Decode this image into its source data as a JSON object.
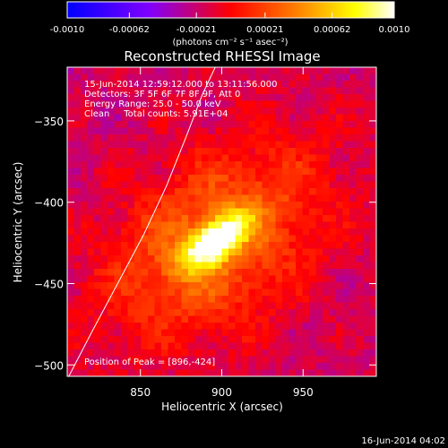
{
  "chart_data": {
    "type": "heatmap",
    "title": "Reconstructed RHESSI Image",
    "xlabel": "Heliocentric X (arcsec)",
    "ylabel": "Heliocentric Y (arcsec)",
    "xlim": [
      805,
      995
    ],
    "ylim": [
      -507,
      -317
    ],
    "x_ticks": [
      850,
      900,
      950
    ],
    "y_ticks": [
      -350,
      -400,
      -450,
      -500
    ],
    "colorbar": {
      "min": -0.001,
      "max": 0.001,
      "ticks": [
        "-0.0010",
        "-0.00062",
        "-0.00021",
        "0.00021",
        "0.00062",
        "0.0010"
      ],
      "tick_values": [
        -0.001,
        -0.00062,
        -0.00021,
        0.00021,
        0.00062,
        0.001
      ],
      "unit_label": "(photons cm⁻² s⁻¹ asec⁻²)",
      "colors": [
        "#0000ff",
        "#7f00ff",
        "#ff0000",
        "#ff7f00",
        "#ffff00",
        "#ffffff"
      ]
    },
    "annotations": [
      "15-Jun-2014 12:59:12.000 to 13:11:56.000",
      "Detectors: 3F 5F 6F 7F 8F 9F, Att 0",
      "Energy Range: 25.0 - 50.0 keV",
      "Clean     Total counts: 5.91E+04"
    ],
    "peak_label": "Position of Peak = [896,-424]",
    "peak": [
      896,
      -424
    ],
    "limb_points": [
      [
        806,
        -507
      ],
      [
        820,
        -480
      ],
      [
        836,
        -450
      ],
      [
        852,
        -420
      ],
      [
        866,
        -390
      ],
      [
        878,
        -360
      ],
      [
        888,
        -334
      ],
      [
        896,
        -317
      ]
    ]
  },
  "footer": {
    "timestamp": "16-Jun-2014 04:02"
  }
}
